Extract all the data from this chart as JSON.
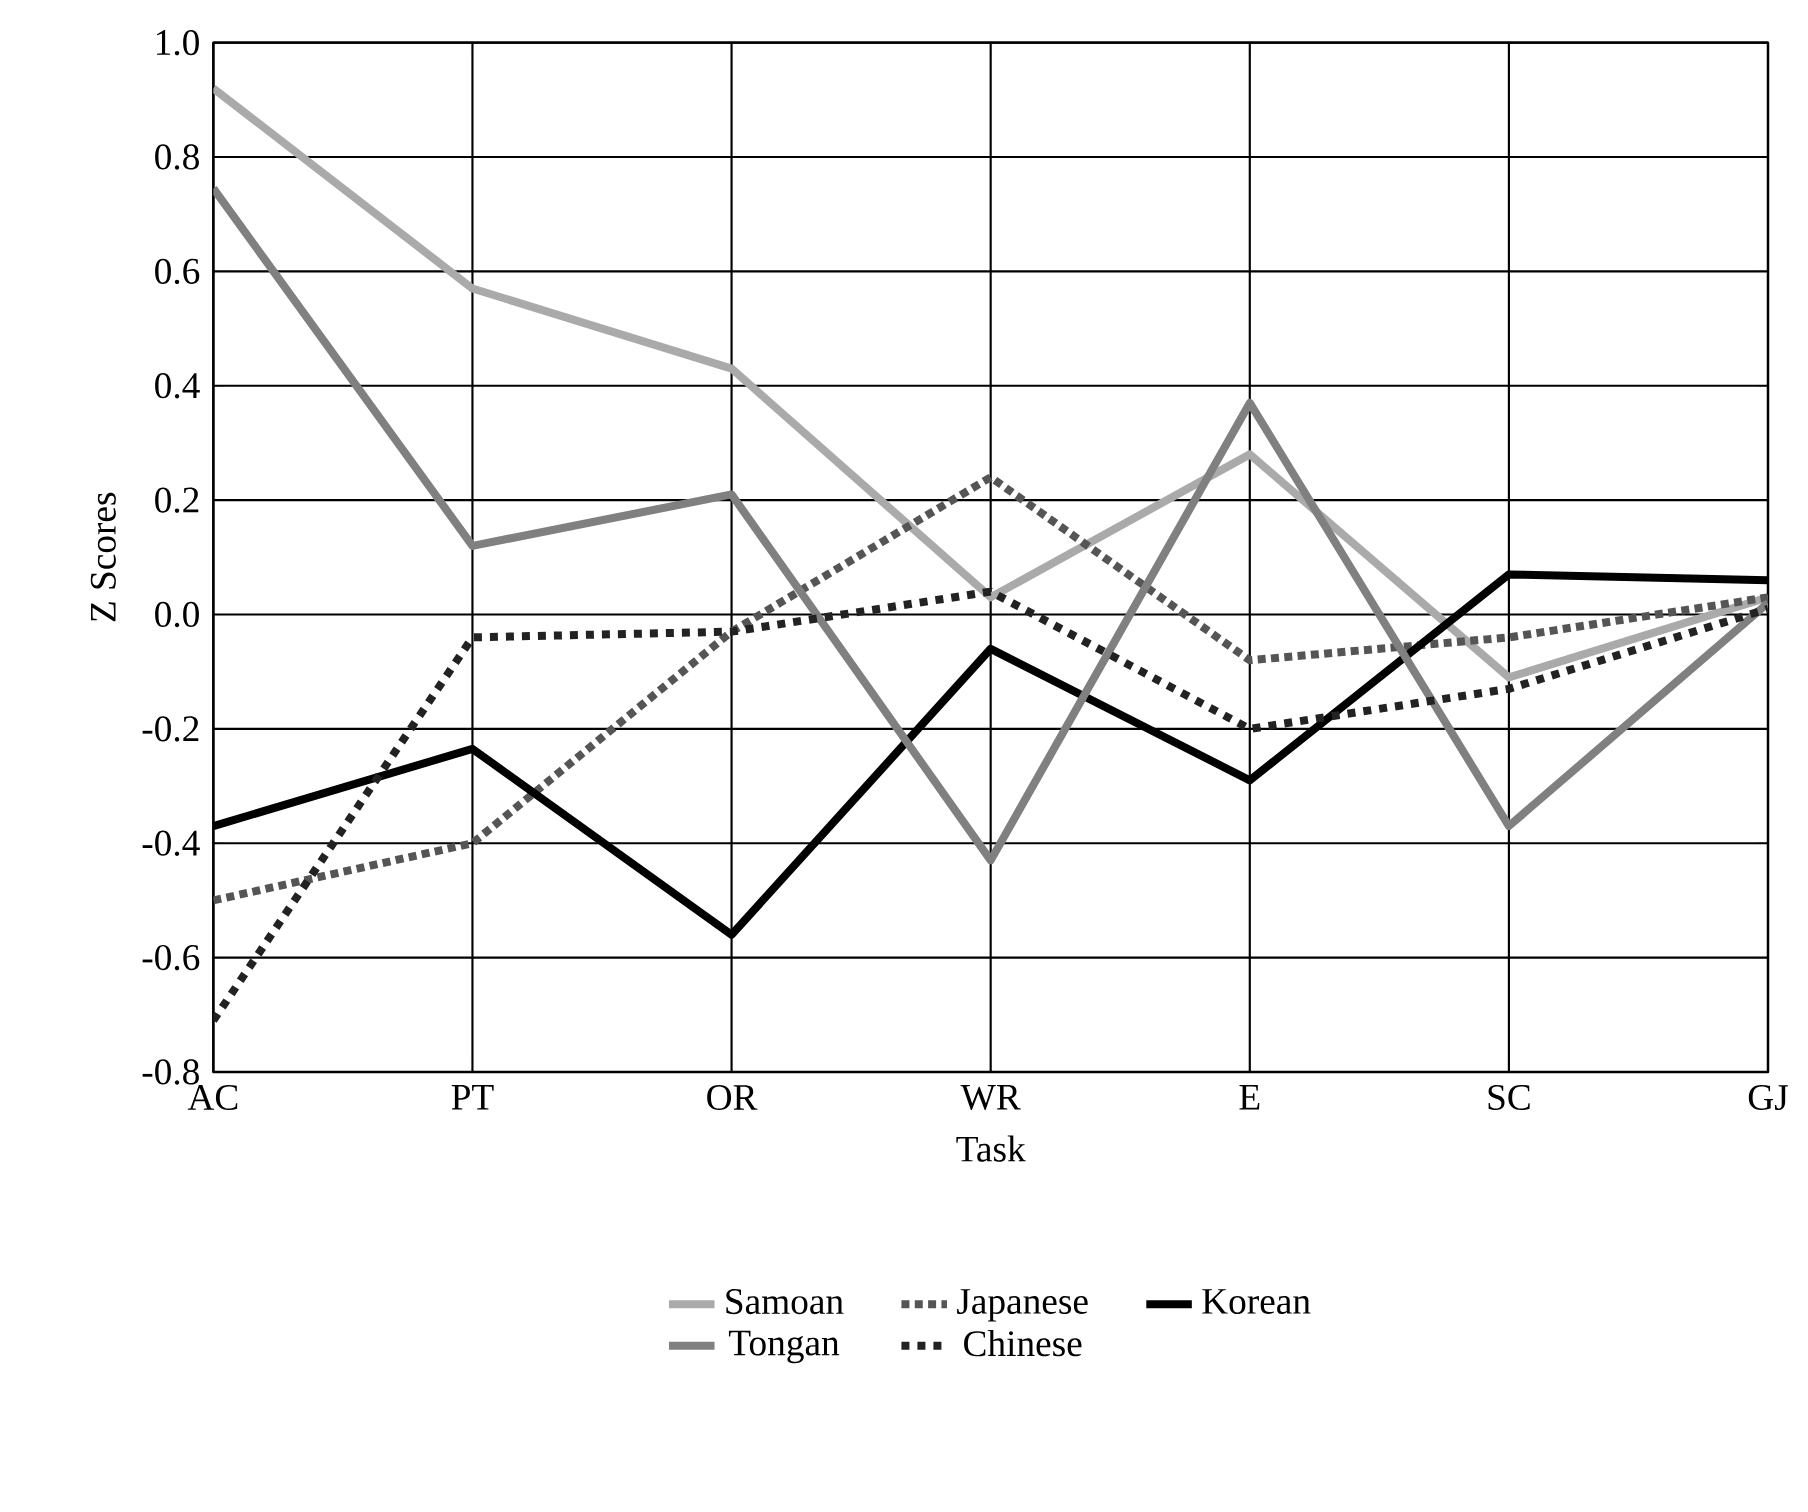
{
  "chart_data": {
    "type": "line",
    "xlabel": "Task",
    "ylabel": "Z Scores",
    "categories": [
      "AC",
      "PT",
      "OR",
      "WR",
      "E",
      "SC",
      "GJ"
    ],
    "series": [
      {
        "name": "Samoan",
        "color": "#aaaaaa",
        "line_style": "solid",
        "values": [
          0.92,
          0.57,
          0.43,
          0.03,
          0.28,
          -0.11,
          0.03
        ]
      },
      {
        "name": "Japanese",
        "color": "#555555",
        "line_style": "dotted",
        "values": [
          -0.5,
          -0.4,
          -0.03,
          0.24,
          -0.08,
          -0.04,
          0.03
        ]
      },
      {
        "name": "Korean",
        "color": "#000000",
        "line_style": "solid",
        "values": [
          -0.37,
          -0.235,
          -0.56,
          -0.06,
          -0.29,
          0.07,
          0.06
        ]
      },
      {
        "name": "Tongan",
        "color": "#808080",
        "line_style": "solid",
        "values": [
          0.745,
          0.12,
          0.21,
          -0.43,
          0.37,
          -0.37,
          0.02
        ]
      },
      {
        "name": "Chinese",
        "color": "#222222",
        "line_style": "dashed",
        "values": [
          -0.71,
          -0.04,
          -0.03,
          0.04,
          -0.2,
          -0.13,
          0.01
        ]
      }
    ],
    "ylim": [
      -0.8,
      1.0
    ],
    "yticks": [
      {
        "value": -0.8,
        "label": "-0.8"
      },
      {
        "value": -0.6,
        "label": "-0.6"
      },
      {
        "value": -0.4,
        "label": "-0.4"
      },
      {
        "value": -0.2,
        "label": "-0.2"
      },
      {
        "value": 0,
        "label": "0.0"
      },
      {
        "value": 0.2,
        "label": "0.2"
      },
      {
        "value": 0.4,
        "label": "0.4"
      },
      {
        "value": 0.6,
        "label": "0.6"
      },
      {
        "value": 0.8,
        "label": "0.8"
      },
      {
        "value": 1.0,
        "label": "1.0"
      }
    ],
    "grid": true,
    "legend": "bottom",
    "marker": "none"
  }
}
